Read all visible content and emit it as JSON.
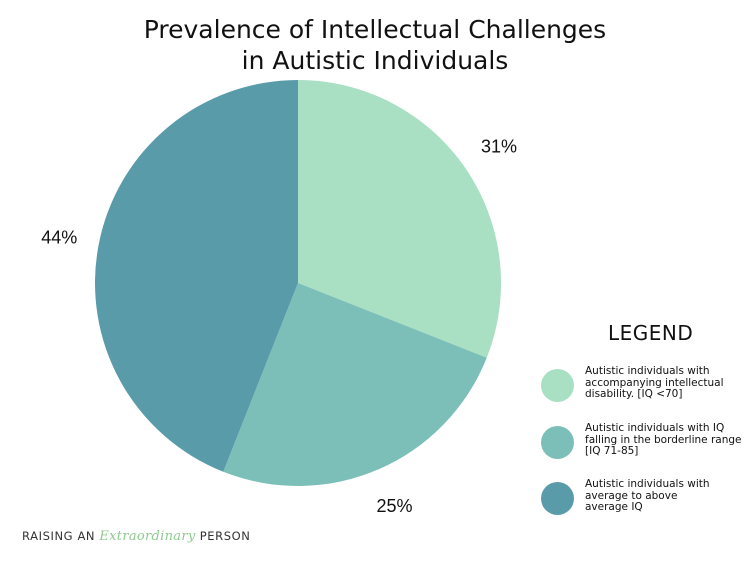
{
  "chart_data": {
    "type": "pie",
    "title": "Prevalence of Intellectual Challenges in Autistic Individuals",
    "title_lines": [
      "Prevalence of Intellectual Challenges",
      "in Autistic Individuals"
    ],
    "slices": [
      {
        "label": "Autistic individuals with accompanying intellectual disability. [IQ <70]",
        "value": 31,
        "value_label": "31%",
        "color": "#a9dfc3"
      },
      {
        "label": "Autistic individuals with IQ falling in the borderline range [IQ 71-85]",
        "value": 25,
        "value_label": "25%",
        "color": "#7bbfb8"
      },
      {
        "label": "Autistic individuals with average to above average IQ",
        "value": 44,
        "value_label": "44%",
        "color": "#5a9baa"
      }
    ],
    "legend": {
      "title": "LEGEND",
      "placement": "right",
      "items": [
        "Autistic individuals with\naccompanying intellectual\ndisability. [IQ <70]",
        "Autistic individuals with IQ\nfalling in the borderline range\n[IQ 71-85]",
        "Autistic individuals with\naverage to above\naverage IQ"
      ]
    }
  },
  "footer": {
    "prefix": "RAISING AN ",
    "script": "Extraordinary",
    "suffix": " PERSON"
  }
}
